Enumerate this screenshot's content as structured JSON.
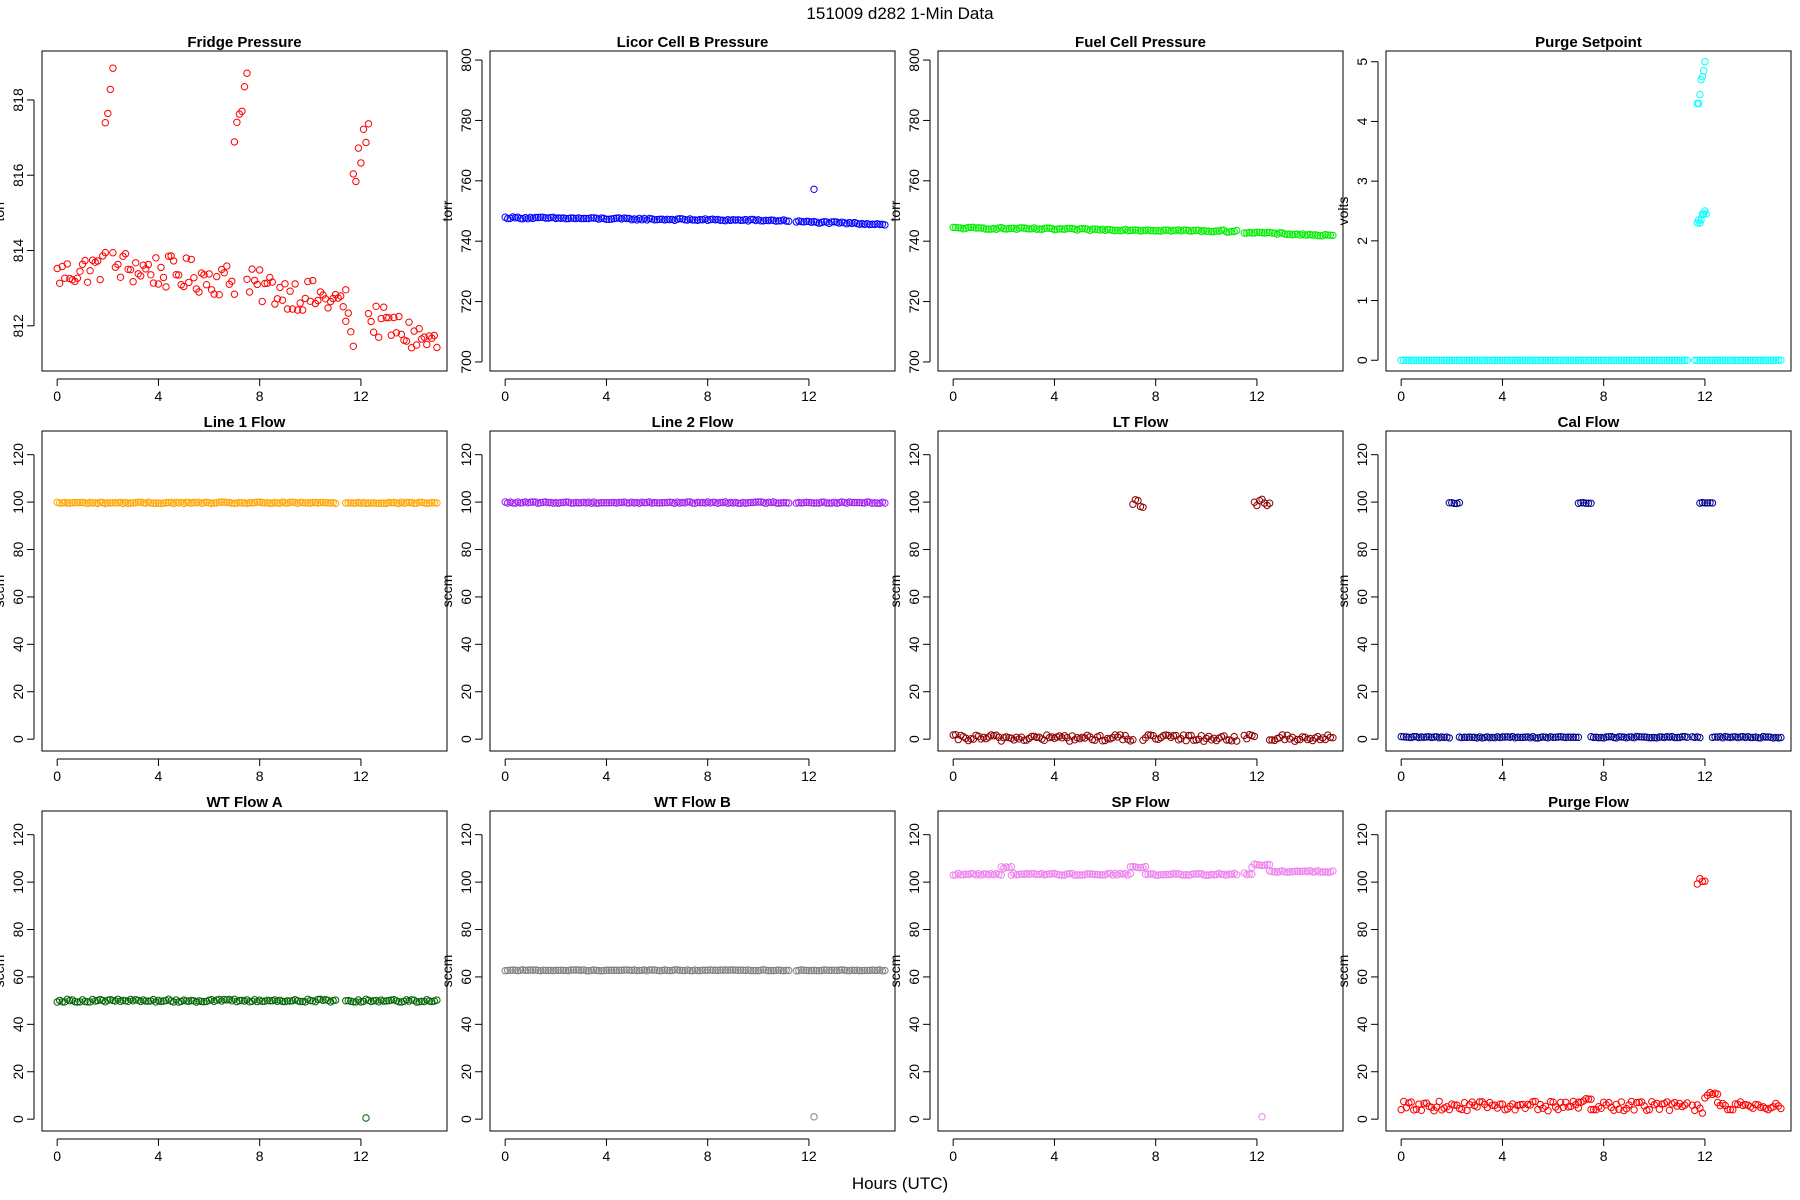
{
  "figure": {
    "title": "151009    d282    1-Min Data",
    "xlabel": "Hours (UTC)"
  },
  "chart_data": [
    {
      "type": "scatter",
      "title": "Fridge Pressure",
      "ylabel": "torr",
      "color": "#ff0000",
      "xlim": [
        -0.6,
        15.4
      ],
      "ylim": [
        810.8,
        819.3
      ],
      "xticks": [
        0,
        4,
        8,
        12
      ],
      "yticks": [
        812,
        814,
        816,
        818
      ],
      "segments": [
        {
          "x": [
            0.0,
            1.9
          ],
          "y": [
            813.35,
            813.6
          ],
          "jitter": 0.4
        },
        {
          "x": [
            1.9,
            2.2
          ],
          "y": [
            817.5,
            818.7
          ],
          "jitter": 0.3
        },
        {
          "x": [
            2.2,
            7.0
          ],
          "y": [
            813.6,
            813.2
          ],
          "jitter": 0.45
        },
        {
          "x": [
            7.0,
            7.5
          ],
          "y": [
            817.0,
            818.6
          ],
          "jitter": 0.3
        },
        {
          "x": [
            7.5,
            11.4
          ],
          "y": [
            813.1,
            812.6
          ],
          "jitter": 0.45
        },
        {
          "x": [
            11.4,
            11.7
          ],
          "y": [
            812.3,
            811.6
          ],
          "jitter": 0.3
        },
        {
          "x": [
            11.7,
            12.3
          ],
          "y": [
            815.8,
            817.5
          ],
          "jitter": 0.4
        },
        {
          "x": [
            12.3,
            15.0
          ],
          "y": [
            812.2,
            811.5
          ],
          "jitter": 0.45
        }
      ]
    },
    {
      "type": "scatter",
      "title": "Licor Cell B Pressure",
      "ylabel": "torr",
      "color": "#0000ff",
      "xlim": [
        -0.6,
        15.4
      ],
      "ylim": [
        697,
        803
      ],
      "xticks": [
        0,
        4,
        8,
        12
      ],
      "yticks": [
        700,
        720,
        740,
        760,
        780,
        800
      ],
      "segments": [
        {
          "x": [
            0.0,
            11.2
          ],
          "y": [
            747.8,
            746.8
          ],
          "jitter": 0.3
        },
        {
          "x": [
            11.5,
            15.0
          ],
          "y": [
            746.5,
            745.6
          ],
          "jitter": 0.3
        }
      ],
      "points": [
        [
          12.2,
          757.2
        ]
      ]
    },
    {
      "type": "scatter",
      "title": "Fuel Cell Pressure",
      "ylabel": "torr",
      "color": "#00ee00",
      "xlim": [
        -0.6,
        15.4
      ],
      "ylim": [
        697,
        803
      ],
      "xticks": [
        0,
        4,
        8,
        12
      ],
      "yticks": [
        700,
        720,
        740,
        760,
        780,
        800
      ],
      "segments": [
        {
          "x": [
            0.0,
            11.2
          ],
          "y": [
            744.4,
            743.3
          ],
          "jitter": 0.3
        },
        {
          "x": [
            11.5,
            15.0
          ],
          "y": [
            743.0,
            741.8
          ],
          "jitter": 0.3
        }
      ]
    },
    {
      "type": "scatter",
      "title": "Purge Setpoint",
      "ylabel": "volts",
      "color": "#00ffff",
      "xlim": [
        -0.6,
        15.4
      ],
      "ylim": [
        -0.18,
        5.18
      ],
      "xticks": [
        0,
        4,
        8,
        12
      ],
      "yticks": [
        0,
        1,
        2,
        3,
        4,
        5
      ],
      "segments": [
        {
          "x": [
            0.0,
            11.3
          ],
          "y": [
            0.0,
            0.0
          ],
          "jitter": 0.0
        },
        {
          "x": [
            11.6,
            12.0
          ],
          "y": [
            0.0,
            0.0
          ],
          "jitter": 0.0
        },
        {
          "x": [
            12.1,
            15.0
          ],
          "y": [
            0.0,
            0.0
          ],
          "jitter": 0.0
        }
      ],
      "points": [
        [
          11.7,
          4.3
        ],
        [
          11.75,
          4.3
        ],
        [
          11.8,
          4.45
        ],
        [
          11.85,
          4.7
        ],
        [
          11.9,
          4.75
        ],
        [
          11.95,
          4.85
        ],
        [
          12.0,
          5.0
        ],
        [
          11.7,
          2.3
        ],
        [
          11.75,
          2.35
        ],
        [
          11.8,
          2.3
        ],
        [
          11.85,
          2.35
        ],
        [
          11.9,
          2.45
        ],
        [
          11.95,
          2.45
        ],
        [
          12.0,
          2.5
        ],
        [
          12.05,
          2.45
        ]
      ]
    },
    {
      "type": "scatter",
      "title": "Line 1 Flow",
      "ylabel": "sccm",
      "color": "#ffa500",
      "xlim": [
        -0.6,
        15.4
      ],
      "ylim": [
        -5,
        130
      ],
      "xticks": [
        0,
        4,
        8,
        12
      ],
      "yticks": [
        0,
        20,
        40,
        60,
        80,
        100,
        120
      ],
      "segments": [
        {
          "x": [
            0.0,
            11.0
          ],
          "y": [
            99.7,
            99.7
          ],
          "jitter": 0.3
        },
        {
          "x": [
            11.4,
            15.0
          ],
          "y": [
            99.7,
            99.7
          ],
          "jitter": 0.3
        }
      ]
    },
    {
      "type": "scatter",
      "title": "Line 2 Flow",
      "ylabel": "sccm",
      "color": "#a020f0",
      "xlim": [
        -0.6,
        15.4
      ],
      "ylim": [
        -5,
        130
      ],
      "xticks": [
        0,
        4,
        8,
        12
      ],
      "yticks": [
        0,
        20,
        40,
        60,
        80,
        100,
        120
      ],
      "segments": [
        {
          "x": [
            0.0,
            11.2
          ],
          "y": [
            99.8,
            99.8
          ],
          "jitter": 0.3
        },
        {
          "x": [
            11.5,
            15.0
          ],
          "y": [
            99.8,
            99.8
          ],
          "jitter": 0.3
        }
      ]
    },
    {
      "type": "scatter",
      "title": "LT Flow",
      "ylabel": "sccm",
      "color": "#8b0000",
      "xlim": [
        -0.6,
        15.4
      ],
      "ylim": [
        -5,
        130
      ],
      "xticks": [
        0,
        4,
        8,
        12
      ],
      "yticks": [
        0,
        20,
        40,
        60,
        80,
        100,
        120
      ],
      "segments": [
        {
          "x": [
            0.0,
            7.1
          ],
          "y": [
            0.5,
            0.5
          ],
          "jitter": 1.4
        },
        {
          "x": [
            7.5,
            11.2
          ],
          "y": [
            0.5,
            0.5
          ],
          "jitter": 1.4
        },
        {
          "x": [
            11.5,
            11.9
          ],
          "y": [
            0.5,
            0.5
          ],
          "jitter": 1.4
        },
        {
          "x": [
            12.5,
            15.0
          ],
          "y": [
            0.5,
            0.5
          ],
          "jitter": 1.4
        },
        {
          "x": [
            7.1,
            7.5
          ],
          "y": [
            100.5,
            98.0
          ],
          "jitter": 1.5
        },
        {
          "x": [
            11.9,
            12.5
          ],
          "y": [
            100.0,
            99.5
          ],
          "jitter": 1.5
        }
      ]
    },
    {
      "type": "scatter",
      "title": "Cal Flow",
      "ylabel": "sccm",
      "color": "#00008b",
      "xlim": [
        -0.6,
        15.4
      ],
      "ylim": [
        -5,
        130
      ],
      "xticks": [
        0,
        4,
        8,
        12
      ],
      "yticks": [
        0,
        20,
        40,
        60,
        80,
        100,
        120
      ],
      "segments": [
        {
          "x": [
            0.0,
            1.9
          ],
          "y": [
            0.8,
            0.8
          ],
          "jitter": 0.3
        },
        {
          "x": [
            2.3,
            7.0
          ],
          "y": [
            0.8,
            0.8
          ],
          "jitter": 0.3
        },
        {
          "x": [
            7.5,
            11.3
          ],
          "y": [
            0.8,
            0.8
          ],
          "jitter": 0.3
        },
        {
          "x": [
            11.5,
            11.8
          ],
          "y": [
            0.8,
            0.8
          ],
          "jitter": 0.3
        },
        {
          "x": [
            12.3,
            15.0
          ],
          "y": [
            0.8,
            0.8
          ],
          "jitter": 0.3
        },
        {
          "x": [
            1.9,
            2.3
          ],
          "y": [
            99.6,
            99.6
          ],
          "jitter": 0.2
        },
        {
          "x": [
            7.0,
            7.5
          ],
          "y": [
            99.6,
            99.6
          ],
          "jitter": 0.2
        },
        {
          "x": [
            11.8,
            12.3
          ],
          "y": [
            99.6,
            99.6
          ],
          "jitter": 0.2
        }
      ]
    },
    {
      "type": "scatter",
      "title": "WT Flow A",
      "ylabel": "sccm",
      "color": "#006400",
      "xlim": [
        -0.6,
        15.4
      ],
      "ylim": [
        -5,
        130
      ],
      "xticks": [
        0,
        4,
        8,
        12
      ],
      "yticks": [
        0,
        20,
        40,
        60,
        80,
        100,
        120
      ],
      "segments": [
        {
          "x": [
            0.0,
            11.0
          ],
          "y": [
            50.0,
            50.0
          ],
          "jitter": 0.6
        },
        {
          "x": [
            11.4,
            15.0
          ],
          "y": [
            50.0,
            50.0
          ],
          "jitter": 0.6
        }
      ],
      "points": [
        [
          12.2,
          0.5
        ]
      ]
    },
    {
      "type": "scatter",
      "title": "WT Flow B",
      "ylabel": "sccm",
      "color": "#808080",
      "xlim": [
        -0.6,
        15.4
      ],
      "ylim": [
        -5,
        130
      ],
      "xticks": [
        0,
        4,
        8,
        12
      ],
      "yticks": [
        0,
        20,
        40,
        60,
        80,
        100,
        120
      ],
      "segments": [
        {
          "x": [
            0.0,
            11.2
          ],
          "y": [
            62.8,
            62.8
          ],
          "jitter": 0.2
        },
        {
          "x": [
            11.5,
            15.0
          ],
          "y": [
            62.8,
            62.8
          ],
          "jitter": 0.2
        }
      ],
      "points": [
        [
          12.2,
          1.0
        ]
      ]
    },
    {
      "type": "scatter",
      "title": "SP Flow",
      "ylabel": "sccm",
      "color": "#ee82ee",
      "xlim": [
        -0.6,
        15.4
      ],
      "ylim": [
        -5,
        130
      ],
      "xticks": [
        0,
        4,
        8,
        12
      ],
      "yticks": [
        0,
        20,
        40,
        60,
        80,
        100,
        120
      ],
      "segments": [
        {
          "x": [
            0.0,
            1.9
          ],
          "y": [
            103.3,
            103.3
          ],
          "jitter": 0.4
        },
        {
          "x": [
            1.9,
            2.3
          ],
          "y": [
            106.3,
            106.3
          ],
          "jitter": 0.4
        },
        {
          "x": [
            2.3,
            7.0
          ],
          "y": [
            103.3,
            103.3
          ],
          "jitter": 0.4
        },
        {
          "x": [
            7.0,
            7.6
          ],
          "y": [
            106.3,
            106.3
          ],
          "jitter": 0.4
        },
        {
          "x": [
            7.6,
            11.2
          ],
          "y": [
            103.3,
            103.3
          ],
          "jitter": 0.4
        },
        {
          "x": [
            11.5,
            11.8
          ],
          "y": [
            103.5,
            103.5
          ],
          "jitter": 0.4
        },
        {
          "x": [
            11.8,
            12.5
          ],
          "y": [
            106.8,
            107.5
          ],
          "jitter": 0.7
        },
        {
          "x": [
            12.5,
            15.0
          ],
          "y": [
            104.5,
            104.5
          ],
          "jitter": 0.4
        }
      ],
      "points": [
        [
          12.2,
          1.0
        ]
      ]
    },
    {
      "type": "scatter",
      "title": "Purge Flow",
      "ylabel": "sccm",
      "color": "#ff0000",
      "xlim": [
        -0.6,
        15.4
      ],
      "ylim": [
        -5,
        130
      ],
      "xticks": [
        0,
        4,
        8,
        12
      ],
      "yticks": [
        0,
        20,
        40,
        60,
        80,
        100,
        120
      ],
      "segments": [
        {
          "x": [
            0.0,
            7.0
          ],
          "y": [
            5.5,
            5.5
          ],
          "jitter": 2.0
        },
        {
          "x": [
            7.0,
            7.5
          ],
          "y": [
            8.5,
            8.5
          ],
          "jitter": 1.5
        },
        {
          "x": [
            7.5,
            11.3
          ],
          "y": [
            5.5,
            5.5
          ],
          "jitter": 2.0
        },
        {
          "x": [
            11.5,
            11.9
          ],
          "y": [
            4.0,
            4.0
          ],
          "jitter": 2.0
        },
        {
          "x": [
            11.7,
            12.0
          ],
          "y": [
            100.5,
            101.0
          ],
          "jitter": 1.5
        },
        {
          "x": [
            12.0,
            12.5
          ],
          "y": [
            10.0,
            12.0
          ],
          "jitter": 2.0
        },
        {
          "x": [
            12.5,
            15.0
          ],
          "y": [
            5.5,
            5.5
          ],
          "jitter": 1.8
        }
      ]
    }
  ]
}
